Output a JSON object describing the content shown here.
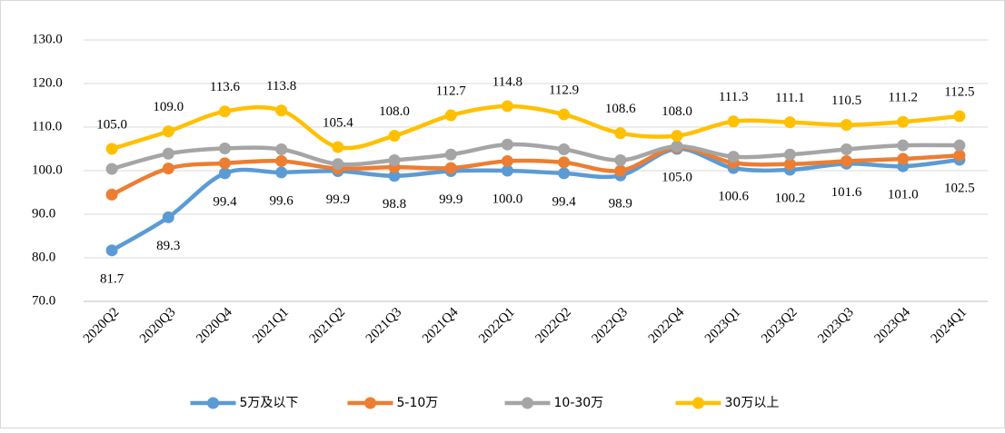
{
  "chart_data": {
    "type": "line",
    "categories": [
      "2020Q2",
      "2020Q3",
      "2020Q4",
      "2021Q1",
      "2021Q2",
      "2021Q3",
      "2021Q4",
      "2022Q1",
      "2022Q2",
      "2022Q3",
      "2022Q4",
      "2023Q1",
      "2023Q2",
      "2023Q3",
      "2023Q4",
      "2024Q1"
    ],
    "series": [
      {
        "name": "5万及以下",
        "color": "#5b9bd5",
        "values": [
          81.7,
          89.3,
          99.4,
          99.6,
          99.9,
          98.8,
          99.9,
          100.0,
          99.4,
          98.9,
          105.0,
          100.6,
          100.2,
          101.6,
          101.0,
          102.5
        ],
        "value_labels": [
          "81.7",
          "89.3",
          "99.4",
          "99.6",
          "99.9",
          "98.8",
          "99.9",
          "100.0",
          "99.4",
          "98.9",
          "105.0",
          "100.6",
          "100.2",
          "101.6",
          "101.0",
          "102.5"
        ]
      },
      {
        "name": "5-10万",
        "color": "#ed7d31",
        "values": [
          94.5,
          100.5,
          101.7,
          102.2,
          100.5,
          100.8,
          100.6,
          102.2,
          101.9,
          100.0,
          105.3,
          101.8,
          101.5,
          102.2,
          102.7,
          103.5
        ]
      },
      {
        "name": "10-30万",
        "color": "#a5a5a5",
        "values": [
          100.4,
          103.9,
          105.1,
          104.9,
          101.5,
          102.4,
          103.7,
          106.0,
          104.9,
          102.4,
          105.6,
          103.2,
          103.7,
          104.9,
          105.8,
          105.8
        ]
      },
      {
        "name": "30万以上",
        "color": "#ffc000",
        "values": [
          105.0,
          109.0,
          113.6,
          113.8,
          105.4,
          108.0,
          112.7,
          114.8,
          112.9,
          108.6,
          108.0,
          111.3,
          111.1,
          110.5,
          111.2,
          112.5
        ],
        "value_labels": [
          "105.0",
          "109.0",
          "113.6",
          "113.8",
          "105.4",
          "108.0",
          "112.7",
          "114.8",
          "112.9",
          "108.6",
          "108.0",
          "111.3",
          "111.1",
          "110.5",
          "111.2",
          "112.5"
        ]
      }
    ],
    "ylim": [
      70,
      130
    ],
    "yticks": [
      {
        "value": 70,
        "label": "70.0"
      },
      {
        "value": 80,
        "label": "80.0"
      },
      {
        "value": 90,
        "label": "90.0"
      },
      {
        "value": 100,
        "label": "100.0"
      },
      {
        "value": 110,
        "label": "110.0"
      },
      {
        "value": 120,
        "label": "120.0"
      },
      {
        "value": 130,
        "label": "130.0"
      }
    ],
    "grid": true,
    "legend": "bottom"
  }
}
